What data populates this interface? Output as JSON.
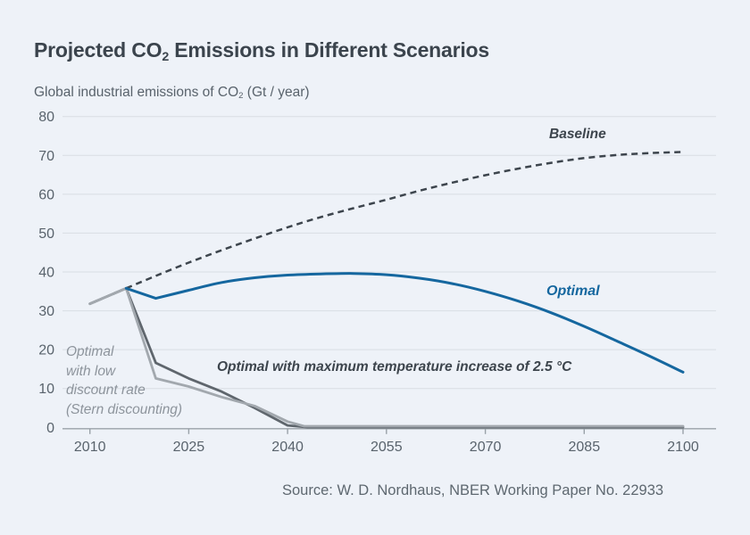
{
  "header": {
    "title_pre": "Projected CO",
    "title_sub": "2",
    "title_post": " Emissions in Different Scenarios",
    "subtitle_pre": "Global industrial emissions of CO",
    "subtitle_sub": "2",
    "subtitle_post": " (Gt / year)"
  },
  "footer": {
    "source": "Source: W. D. Nordhaus, NBER Working Paper No. 22933"
  },
  "chart_data": {
    "type": "line",
    "title": "Projected CO₂ Emissions in Different Scenarios",
    "ylabel": "Global industrial emissions of CO₂ (Gt / year)",
    "xlabel": "",
    "grid": "horizontal",
    "legend_position": "inline-annotations",
    "x_axis": {
      "range": [
        2010,
        2100
      ],
      "ticks": [
        2010,
        2025,
        2040,
        2055,
        2070,
        2085,
        2100
      ]
    },
    "y_axis": {
      "range": [
        0,
        80
      ],
      "ticks": [
        0,
        10,
        20,
        30,
        40,
        50,
        60,
        70,
        80
      ]
    },
    "colors": {
      "background": "#eef2f8",
      "grid": "#d8dde3",
      "axis": "#99a1a8",
      "baseline": "#3d454d",
      "optimal": "#15679f",
      "temp_limit": "#5f666d",
      "stern": "#a2a8ae"
    },
    "series": [
      {
        "name": "Baseline",
        "color": "#3d454d",
        "dash": "7 5",
        "width": 2.5,
        "smooth": true,
        "smooth_from": 0,
        "x": [
          2015.5,
          2020,
          2025,
          2030,
          2035,
          2040,
          2045,
          2050,
          2055,
          2060,
          2065,
          2070,
          2075,
          2080,
          2085,
          2090,
          2095,
          2100
        ],
        "y": [
          35.8,
          39.0,
          42.4,
          45.6,
          48.6,
          51.5,
          54.1,
          56.4,
          58.6,
          60.9,
          63.0,
          64.9,
          66.6,
          68.1,
          69.3,
          70.1,
          70.6,
          70.9
        ]
      },
      {
        "name": "Optimal with maximum temperature increase of 2.5 °C",
        "color": "#5f666d",
        "width": 2.8,
        "smooth": false,
        "x": [
          2010,
          2015.5,
          2020,
          2025,
          2030,
          2035,
          2040,
          2043,
          2100
        ],
        "y": [
          31.8,
          35.8,
          16.6,
          12.6,
          9.2,
          5.0,
          0.5,
          0.05,
          0.05
        ]
      },
      {
        "name": "Optimal with low discount rate (Stern discounting)",
        "color": "#a2a8ae",
        "width": 2.8,
        "smooth": false,
        "x": [
          2010,
          2015.5,
          2020,
          2025,
          2030,
          2035,
          2040,
          2042.5,
          2100
        ],
        "y": [
          31.8,
          35.8,
          12.6,
          10.5,
          7.8,
          5.5,
          1.5,
          0.3,
          0.3
        ]
      },
      {
        "name": "Optimal",
        "color": "#15679f",
        "width": 3,
        "smooth": true,
        "smooth_from": 1,
        "x": [
          2015.5,
          2020,
          2025,
          2030,
          2035,
          2040,
          2045,
          2050,
          2055,
          2060,
          2065,
          2070,
          2075,
          2080,
          2085,
          2090,
          2095,
          2100
        ],
        "y": [
          35.8,
          33.2,
          35.3,
          37.3,
          38.5,
          39.2,
          39.5,
          39.6,
          39.3,
          38.4,
          37.0,
          35.0,
          32.5,
          29.5,
          26.0,
          22.2,
          18.3,
          14.2
        ]
      }
    ],
    "annotations": [
      {
        "text": "Baseline",
        "color": "#3d454d"
      },
      {
        "text": "Optimal",
        "color": "#15679f"
      },
      {
        "text": "Optimal with maximum temperature increase of 2.5 °C",
        "color": "#3d454d"
      },
      {
        "text": "Optimal\nwith low\ndiscount rate\n(Stern discounting)",
        "color": "#8d949c"
      }
    ]
  }
}
